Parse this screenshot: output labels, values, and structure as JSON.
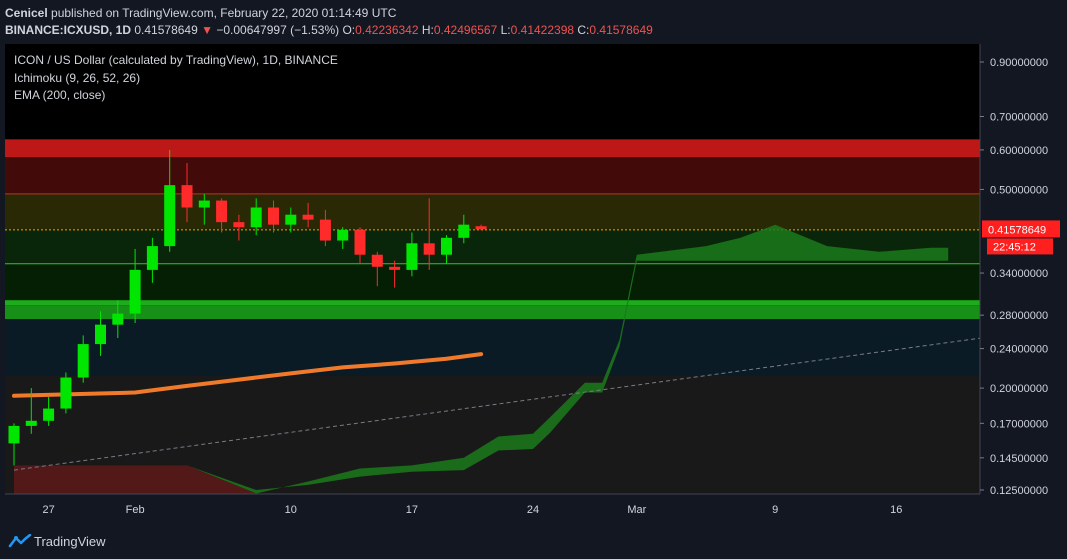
{
  "header": {
    "author": "Cenicel",
    "published_text": "published on TradingView.com, February 22, 2020 01:14:49 UTC",
    "symbol": "BINANCE:ICXUSD, 1D",
    "last": "0.41578649",
    "change_arrow": "▼",
    "change": "−0.00647997 (−1.53%)",
    "o_label": "O:",
    "o": "0.42236342",
    "h_label": "H:",
    "h": "0.42496567",
    "l_label": "L:",
    "l": "0.41422398",
    "c_label": "C:",
    "c": "0.41578649"
  },
  "legend": {
    "title": "ICON / US Dollar (calculated by TradingView), 1D, BINANCE",
    "ichimoku": "Ichimoku (9, 26, 52, 26)",
    "ema": "EMA (200, close)"
  },
  "footer": {
    "brand": "TradingView"
  },
  "colors": {
    "background": "#131722",
    "plot_bg": "#000000",
    "up": "#00e600",
    "down": "#ff2a2a",
    "ema": "#f07a2a",
    "cloud": "#1b7a1b",
    "price_label_bg": "#ff1f1f"
  },
  "chart_data": {
    "type": "candlestick",
    "symbol": "ICON / US Dollar",
    "x_tick_labels": [
      "27",
      "Feb",
      "10",
      "17",
      "24",
      "Mar",
      "9",
      "16"
    ],
    "y_tick_labels": [
      "0.90000000",
      "0.70000000",
      "0.60000000",
      "0.50000000",
      "0.34000000",
      "0.28000000",
      "0.24000000",
      "0.20000000",
      "0.17000000",
      "0.14500000",
      "0.12500000"
    ],
    "y_ticks": [
      0.9,
      0.7,
      0.6,
      0.5,
      0.34,
      0.28,
      0.24,
      0.2,
      0.17,
      0.145,
      0.125
    ],
    "y_scale": "log",
    "ylim": [
      0.12,
      1.0
    ],
    "last_price_label": "0.41578649",
    "countdown_label": "22:45:12",
    "candles": [
      {
        "date": "2020-01-25",
        "o": 0.155,
        "h": 0.17,
        "l": 0.14,
        "c": 0.168
      },
      {
        "date": "2020-01-26",
        "o": 0.168,
        "h": 0.2,
        "l": 0.162,
        "c": 0.172
      },
      {
        "date": "2020-01-27",
        "o": 0.172,
        "h": 0.192,
        "l": 0.168,
        "c": 0.182
      },
      {
        "date": "2020-01-28",
        "o": 0.182,
        "h": 0.215,
        "l": 0.178,
        "c": 0.21
      },
      {
        "date": "2020-01-29",
        "o": 0.21,
        "h": 0.255,
        "l": 0.205,
        "c": 0.245
      },
      {
        "date": "2020-01-30",
        "o": 0.245,
        "h": 0.285,
        "l": 0.232,
        "c": 0.268
      },
      {
        "date": "2020-01-31",
        "o": 0.268,
        "h": 0.3,
        "l": 0.252,
        "c": 0.282
      },
      {
        "date": "2020-02-01",
        "o": 0.282,
        "h": 0.38,
        "l": 0.27,
        "c": 0.345
      },
      {
        "date": "2020-02-02",
        "o": 0.345,
        "h": 0.4,
        "l": 0.325,
        "c": 0.385
      },
      {
        "date": "2020-02-03",
        "o": 0.385,
        "h": 0.6,
        "l": 0.375,
        "c": 0.51
      },
      {
        "date": "2020-02-04",
        "o": 0.51,
        "h": 0.565,
        "l": 0.43,
        "c": 0.46
      },
      {
        "date": "2020-02-05",
        "o": 0.46,
        "h": 0.49,
        "l": 0.425,
        "c": 0.475
      },
      {
        "date": "2020-02-06",
        "o": 0.475,
        "h": 0.48,
        "l": 0.41,
        "c": 0.43
      },
      {
        "date": "2020-02-07",
        "o": 0.43,
        "h": 0.445,
        "l": 0.395,
        "c": 0.42
      },
      {
        "date": "2020-02-08",
        "o": 0.42,
        "h": 0.48,
        "l": 0.405,
        "c": 0.46
      },
      {
        "date": "2020-02-09",
        "o": 0.46,
        "h": 0.475,
        "l": 0.41,
        "c": 0.425
      },
      {
        "date": "2020-02-10",
        "o": 0.425,
        "h": 0.46,
        "l": 0.41,
        "c": 0.445
      },
      {
        "date": "2020-02-11",
        "o": 0.445,
        "h": 0.47,
        "l": 0.42,
        "c": 0.435
      },
      {
        "date": "2020-02-12",
        "o": 0.435,
        "h": 0.455,
        "l": 0.385,
        "c": 0.395
      },
      {
        "date": "2020-02-13",
        "o": 0.395,
        "h": 0.42,
        "l": 0.38,
        "c": 0.415
      },
      {
        "date": "2020-02-14",
        "o": 0.415,
        "h": 0.42,
        "l": 0.355,
        "c": 0.37
      },
      {
        "date": "2020-02-15",
        "o": 0.37,
        "h": 0.375,
        "l": 0.32,
        "c": 0.35
      },
      {
        "date": "2020-02-16",
        "o": 0.35,
        "h": 0.36,
        "l": 0.318,
        "c": 0.345
      },
      {
        "date": "2020-02-17",
        "o": 0.345,
        "h": 0.41,
        "l": 0.335,
        "c": 0.39
      },
      {
        "date": "2020-02-18",
        "o": 0.39,
        "h": 0.48,
        "l": 0.345,
        "c": 0.37
      },
      {
        "date": "2020-02-19",
        "o": 0.37,
        "h": 0.405,
        "l": 0.355,
        "c": 0.4
      },
      {
        "date": "2020-02-20",
        "o": 0.4,
        "h": 0.445,
        "l": 0.39,
        "c": 0.425
      },
      {
        "date": "2020-02-21",
        "o": 0.422,
        "h": 0.425,
        "l": 0.414,
        "c": 0.416
      }
    ],
    "ema_200": [
      {
        "date": "2020-01-25",
        "v": 0.193
      },
      {
        "date": "2020-02-01",
        "v": 0.196
      },
      {
        "date": "2020-02-04",
        "v": 0.202
      },
      {
        "date": "2020-02-07",
        "v": 0.208
      },
      {
        "date": "2020-02-10",
        "v": 0.214
      },
      {
        "date": "2020-02-13",
        "v": 0.22
      },
      {
        "date": "2020-02-16",
        "v": 0.224
      },
      {
        "date": "2020-02-19",
        "v": 0.229
      },
      {
        "date": "2020-02-21",
        "v": 0.234
      }
    ],
    "ichimoku_cloud": [
      {
        "date": "2020-01-25",
        "a": 0.14,
        "b": 0.14
      },
      {
        "date": "2020-02-04",
        "a": 0.14,
        "b": 0.14
      },
      {
        "date": "2020-02-08",
        "a": 0.123,
        "b": 0.125
      },
      {
        "date": "2020-02-11",
        "a": 0.13,
        "b": 0.128
      },
      {
        "date": "2020-02-14",
        "a": 0.138,
        "b": 0.133
      },
      {
        "date": "2020-02-17",
        "a": 0.14,
        "b": 0.136
      },
      {
        "date": "2020-02-20",
        "a": 0.145,
        "b": 0.137
      },
      {
        "date": "2020-02-22",
        "a": 0.16,
        "b": 0.15
      },
      {
        "date": "2020-02-24",
        "a": 0.162,
        "b": 0.151
      },
      {
        "date": "2020-02-25",
        "a": 0.175,
        "b": 0.163
      },
      {
        "date": "2020-02-27",
        "a": 0.205,
        "b": 0.196
      },
      {
        "date": "2020-02-28",
        "a": 0.205,
        "b": 0.196
      },
      {
        "date": "2020-02-29",
        "a": 0.25,
        "b": 0.242
      },
      {
        "date": "2020-03-01",
        "a": 0.37,
        "b": 0.36
      },
      {
        "date": "2020-03-05",
        "a": 0.385,
        "b": 0.36
      },
      {
        "date": "2020-03-07",
        "a": 0.4,
        "b": 0.36
      },
      {
        "date": "2020-03-09",
        "a": 0.425,
        "b": 0.36
      },
      {
        "date": "2020-03-12",
        "a": 0.385,
        "b": 0.36
      },
      {
        "date": "2020-03-15",
        "a": 0.375,
        "b": 0.36
      },
      {
        "date": "2020-03-18",
        "a": 0.382,
        "b": 0.36
      },
      {
        "date": "2020-03-19",
        "a": 0.382,
        "b": 0.36
      }
    ],
    "trendline": [
      {
        "date": "2020-01-25",
        "v": 0.137
      },
      {
        "date": "2020-03-22",
        "v": 0.255
      }
    ],
    "zones": [
      {
        "from": 0.58,
        "to": 0.63,
        "color": "#d01b1b"
      },
      {
        "from": 0.49,
        "to": 0.58,
        "color": "#4a0b0b"
      },
      {
        "from": 0.415,
        "to": 0.49,
        "color": "#2e2e06"
      },
      {
        "from": 0.355,
        "to": 0.415,
        "color": "#0b2a0b"
      },
      {
        "from": 0.3,
        "to": 0.355,
        "color": "#062206"
      },
      {
        "from": 0.293,
        "to": 0.3,
        "color": "#1fbf1f"
      },
      {
        "from": 0.275,
        "to": 0.293,
        "color": "#1aa01a"
      },
      {
        "from": 0.212,
        "to": 0.275,
        "color": "#0c1e2a"
      },
      {
        "from": 0.12,
        "to": 0.212,
        "color": "#1c1c1c"
      }
    ],
    "h_lines": [
      {
        "v": 0.415,
        "color": "#ff9900",
        "dash": true
      },
      {
        "v": 0.355,
        "color": "#35c235",
        "dash": false
      },
      {
        "v": 0.49,
        "color": "#c03020",
        "dash": false
      }
    ]
  }
}
